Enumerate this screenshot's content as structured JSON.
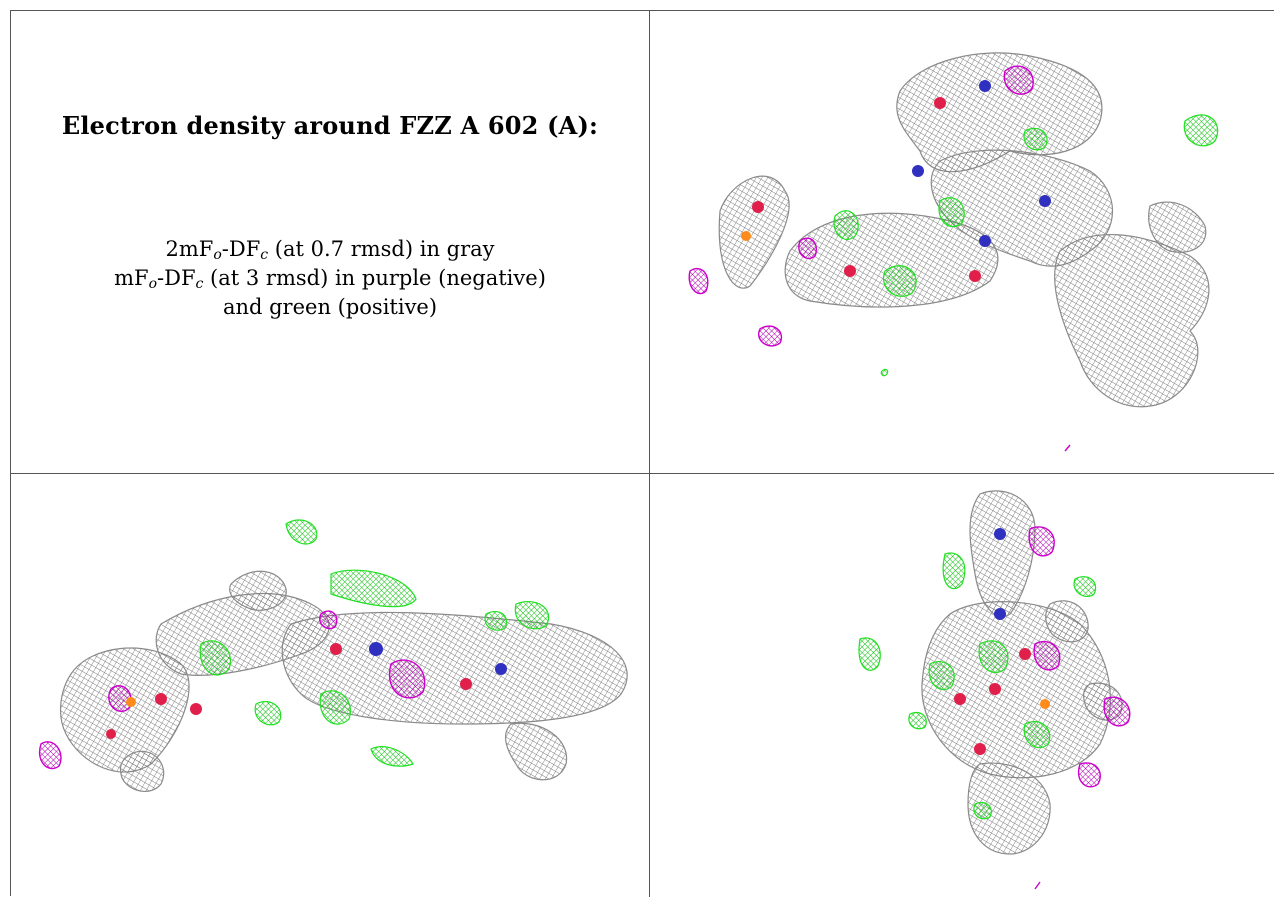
{
  "caption": {
    "title": "Electron density around FZZ A 602 (A):",
    "line1": {
      "pre": "2mF",
      "sub1": "o",
      "mid": "-DF",
      "sub2": "c",
      "post": " (at 0.7 rmsd) in gray"
    },
    "line2": {
      "pre": "mF",
      "sub1": "o",
      "mid": "-DF",
      "sub2": "c",
      "post": " (at 3 rmsd) in purple (negative)"
    },
    "line3": "and green (positive)"
  },
  "colors": {
    "density_2fofc": "#8a8a8a",
    "negative": "#cc00cc",
    "positive": "#22e022",
    "oxygen": "#e0204a",
    "nitrogen": "#3030c0",
    "phosphorus": "#ff8c1a"
  }
}
